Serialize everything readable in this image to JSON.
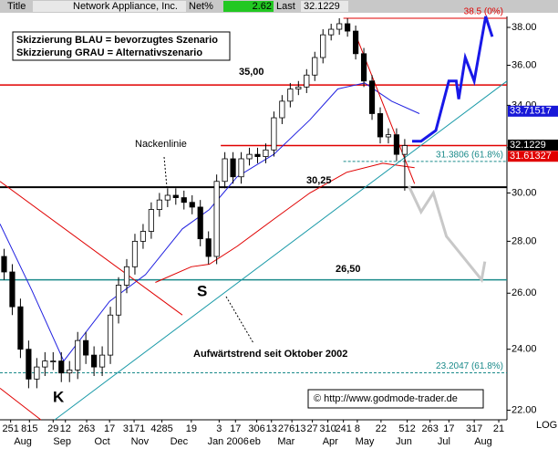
{
  "chart_data": {
    "type": "candlestick",
    "header": {
      "title_label": "Title",
      "name": "Network Appliance, Inc.",
      "net_label": "Net%",
      "net": "2.62",
      "last_label": "Last",
      "last": "32.1229"
    },
    "log": true,
    "scale_label": "LOG",
    "xlim": [
      0,
      62
    ],
    "ylim": [
      21.7,
      38.6
    ],
    "yticks": [
      {
        "value": 22,
        "label": "22.00"
      },
      {
        "value": 24,
        "label": "24.00"
      },
      {
        "value": 26,
        "label": "26.00"
      },
      {
        "value": 28,
        "label": "28.00"
      },
      {
        "value": 30,
        "label": "30.00"
      },
      {
        "value": 32,
        "label": "32.00"
      },
      {
        "value": 34,
        "label": "34.00"
      },
      {
        "value": 36,
        "label": "36.00"
      },
      {
        "value": 38,
        "label": "38.00"
      }
    ],
    "xticks_days": [
      {
        "value": 1.3,
        "label": "251"
      },
      {
        "value": 3.6,
        "label": "815"
      },
      {
        "value": 6.5,
        "label": "29"
      },
      {
        "value": 8.0,
        "label": "12"
      },
      {
        "value": 10.6,
        "label": "263"
      },
      {
        "value": 13.4,
        "label": "17"
      },
      {
        "value": 16.4,
        "label": "3171"
      },
      {
        "value": 19.8,
        "label": "4285"
      },
      {
        "value": 23.4,
        "label": "19"
      },
      {
        "value": 26.8,
        "label": "3"
      },
      {
        "value": 28.8,
        "label": "17"
      },
      {
        "value": 31.4,
        "label": "306"
      },
      {
        "value": 33.2,
        "label": "13"
      },
      {
        "value": 35.7,
        "label": "27613"
      },
      {
        "value": 38.2,
        "label": "27"
      },
      {
        "value": 40.1,
        "label": "310"
      },
      {
        "value": 42.0,
        "label": "241"
      },
      {
        "value": 43.7,
        "label": "8"
      },
      {
        "value": 46.6,
        "label": "22"
      },
      {
        "value": 49.8,
        "label": "512"
      },
      {
        "value": 52.6,
        "label": "263"
      },
      {
        "value": 54.9,
        "label": "17"
      },
      {
        "value": 58.0,
        "label": "317"
      },
      {
        "value": 61.0,
        "label": "21"
      }
    ],
    "xticks_months": [
      {
        "value": 2.8,
        "label": "Aug"
      },
      {
        "value": 7.6,
        "label": "Sep"
      },
      {
        "value": 12.5,
        "label": "Oct"
      },
      {
        "value": 17.1,
        "label": "Nov"
      },
      {
        "value": 21.9,
        "label": "Dec"
      },
      {
        "value": 27.9,
        "label": "Jan 2006"
      },
      {
        "value": 31.2,
        "label": "eb"
      },
      {
        "value": 35.0,
        "label": "Mar"
      },
      {
        "value": 40.4,
        "label": "Apr"
      },
      {
        "value": 44.6,
        "label": "May"
      },
      {
        "value": 49.4,
        "label": "Jun"
      },
      {
        "value": 54.3,
        "label": "Jul"
      },
      {
        "value": 59.1,
        "label": "Aug"
      }
    ],
    "candles": {
      "open": [
        27.4,
        26.8,
        25.5,
        24.0,
        23.0,
        23.4,
        23.6,
        23.6,
        23.2,
        23.3,
        24.3,
        23.8,
        23.4,
        23.8,
        25.2,
        26.3,
        27.0,
        28.0,
        28.4,
        29.3,
        29.7,
        29.9,
        29.8,
        29.6,
        29.4,
        28.1,
        27.4,
        30.5,
        31.5,
        30.7,
        31.5,
        31.7,
        31.6,
        31.9,
        33.4,
        34.2,
        34.8,
        34.9,
        35.5,
        36.4,
        37.6,
        37.9,
        38.2,
        37.8,
        36.6,
        35.2,
        33.6,
        32.5,
        32.6,
        31.7
      ],
      "high": [
        27.7,
        27.1,
        25.8,
        24.3,
        23.7,
        23.9,
        23.9,
        23.9,
        23.6,
        24.6,
        24.6,
        24.1,
        24.1,
        25.5,
        26.6,
        27.3,
        28.3,
        28.7,
        29.6,
        30.0,
        30.2,
        30.2,
        30.1,
        29.9,
        29.7,
        28.4,
        30.8,
        31.8,
        31.8,
        31.8,
        32.0,
        32.0,
        32.2,
        33.7,
        34.5,
        35.1,
        35.2,
        35.8,
        36.7,
        37.9,
        38.2,
        38.5,
        38.5,
        38.1,
        36.9,
        35.5,
        33.9,
        32.9,
        32.9,
        32.4
      ],
      "low": [
        26.5,
        25.2,
        23.7,
        22.7,
        22.7,
        23.1,
        23.3,
        22.9,
        22.9,
        23.0,
        23.5,
        23.1,
        23.1,
        23.5,
        24.9,
        26.0,
        26.7,
        27.7,
        28.1,
        29.0,
        29.4,
        29.5,
        29.3,
        29.1,
        27.8,
        27.1,
        27.1,
        30.2,
        30.4,
        30.4,
        31.2,
        31.3,
        31.3,
        31.6,
        33.1,
        33.9,
        34.5,
        34.6,
        35.2,
        36.1,
        37.3,
        37.6,
        37.5,
        36.3,
        34.9,
        33.3,
        32.2,
        32.2,
        31.4,
        30.1
      ],
      "close": [
        26.8,
        25.5,
        24.0,
        23.0,
        23.4,
        23.6,
        23.6,
        23.2,
        23.3,
        24.3,
        23.8,
        23.4,
        23.8,
        25.2,
        26.3,
        27.0,
        28.0,
        28.4,
        29.3,
        29.7,
        29.9,
        29.8,
        29.6,
        29.4,
        28.1,
        27.4,
        30.5,
        31.5,
        30.7,
        31.5,
        31.7,
        31.6,
        31.9,
        33.4,
        34.2,
        34.8,
        34.9,
        35.5,
        36.4,
        37.6,
        37.9,
        38.2,
        37.8,
        36.6,
        35.2,
        33.6,
        32.5,
        32.6,
        31.7,
        32.1
      ]
    },
    "overlays": [
      {
        "color": "#2020e0",
        "width": 1,
        "x": [
          0,
          3.9,
          7.8,
          13.4,
          17.8,
          22.3,
          25.6,
          29.0,
          33.5,
          37.9,
          41.3,
          44.6,
          47.9,
          51.3
        ],
        "y": [
          28.7,
          26.1,
          23.6,
          25.7,
          26.7,
          28.5,
          29.3,
          30.7,
          31.7,
          33.3,
          34.8,
          35.1,
          34.2,
          33.6
        ]
      },
      {
        "color": "#e00000",
        "width": 1,
        "x": [
          19.0,
          23.4,
          25.6,
          29.0,
          33.5,
          37.9,
          42.4,
          46.8,
          50.7
        ],
        "y": [
          26.4,
          27.0,
          27.1,
          27.8,
          28.9,
          30.0,
          30.9,
          31.3,
          31.1
        ]
      },
      {
        "color": "#e00000",
        "width": 1,
        "x": [
          0,
          22.3
        ],
        "y": [
          30.5,
          25.2
        ]
      },
      {
        "color": "#e00000",
        "width": 1,
        "x": [
          0,
          5.0
        ],
        "y": [
          22.7,
          21.7
        ]
      },
      {
        "color": "#e00000",
        "width": 1,
        "x": [
          43.5,
          50.7
        ],
        "y": [
          37.6,
          30.4
        ]
      },
      {
        "color": "#1a9aa8",
        "width": 1,
        "x": [
          6.7,
          62
        ],
        "y": [
          21.7,
          35.2
        ]
      },
      {
        "color": "#1818e8",
        "width": 3,
        "x": [
          50.4,
          51.5,
          53.3,
          54.9,
          55.8,
          56.1,
          56.9,
          58.0,
          59.4,
          60.2
        ],
        "y": [
          32.3,
          32.3,
          32.8,
          35.2,
          35.2,
          34.3,
          36.4,
          35.2,
          38.6,
          37.5
        ]
      },
      {
        "color": "#c8c8c8",
        "width": 3,
        "x": [
          50.0,
          51.5,
          53.0,
          54.6,
          58.9,
          59.3
        ],
        "y": [
          30.3,
          29.2,
          30.0,
          28.2,
          26.5,
          27.2
        ]
      }
    ],
    "levels": [
      {
        "value": 35,
        "label": "35,00",
        "color": "#e00000"
      },
      {
        "value": 30.25,
        "label": "30,25",
        "color": "#000000"
      },
      {
        "value": 26.5,
        "label": "26,50",
        "color": "#1a8a8a"
      },
      {
        "value": 32.1,
        "color": "#e00000",
        "x": [
          27,
          62
        ]
      }
    ],
    "fib": [
      {
        "value": 38.5,
        "label": "38.5 (0%)",
        "color": "#e00000",
        "dash": false,
        "x": [
          42,
          62
        ]
      },
      {
        "value": 31.3806,
        "label": "31.3806 (61.8%)",
        "color": "#1a8a8a",
        "dash": true,
        "x": [
          42,
          62
        ]
      },
      {
        "value": 23.2047,
        "label": "23.2047 (61.8%)",
        "color": "#1a8a8a",
        "dash": true,
        "x": [
          0,
          62
        ]
      }
    ],
    "price_boxes": [
      {
        "value": 33.71517,
        "color": "#1818d8"
      },
      {
        "value": 32.1229,
        "color": "#000000"
      },
      {
        "value": 31.61327,
        "color": "#e00000"
      }
    ],
    "annotations": {
      "legend_blue": "Skizzierung BLAU = bevorzugtes Szenario",
      "legend_gray": "Skizzierung GRAU = Alternativszenario",
      "neckline": "Nackenlinie",
      "s": "S",
      "k": "K",
      "trend": "Aufwärtstrend seit Oktober 2002",
      "copyright": "© http://www.godmode-trader.de"
    }
  }
}
